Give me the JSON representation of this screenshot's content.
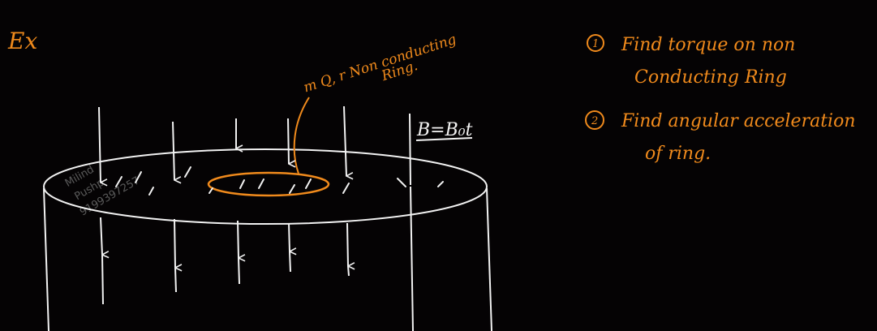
{
  "example_label": "Ex",
  "ring_note": {
    "line1": "m Q, r Non conducting",
    "line2": "Ring."
  },
  "field_label": "B=B₀t",
  "questions": [
    {
      "number": "1",
      "line1": "Find torque on non",
      "line2": "Conducting Ring"
    },
    {
      "number": "2",
      "line1": "Find angular acceleration",
      "line2": "of ring."
    }
  ],
  "watermark": [
    "Milind",
    "Pushp",
    "9199397257"
  ],
  "colors": {
    "ink_orange": "#f08a1c",
    "ink_white": "#f2f2f2",
    "background": "#050304"
  }
}
